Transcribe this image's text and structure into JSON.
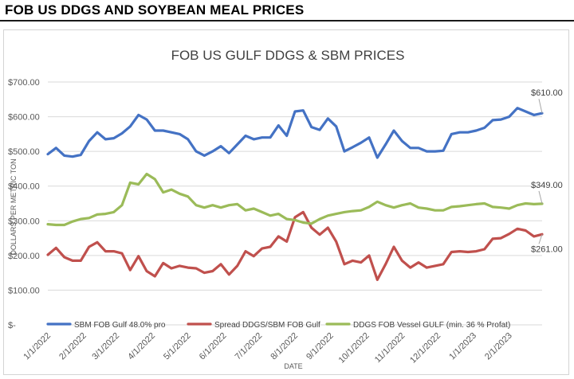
{
  "header": {
    "title": "FOB US DDGS AND SOYBEAN MEAL PRICES"
  },
  "chart_data": {
    "type": "line",
    "title": "FOB US GULF DDGS & SBM PRICES",
    "xlabel": "DATE",
    "ylabel": "DOLLARS PER METRIC TON",
    "ylim": [
      0,
      700
    ],
    "y_ticks": [
      "$-",
      "$100.00",
      "$200.00",
      "$300.00",
      "$400.00",
      "$500.00",
      "$600.00",
      "$700.00"
    ],
    "x_ticks": [
      "1/1/2022",
      "2/1/2022",
      "3/1/2022",
      "4/1/2022",
      "5/1/2022",
      "6/1/2022",
      "7/1/2022",
      "8/1/2022",
      "9/1/2022",
      "10/1/2022",
      "11/1/2022",
      "12/1/2022",
      "1/1/2023",
      "2/1/2023"
    ],
    "x_ticks_index": [
      0,
      4.33,
      8.33,
      12.67,
      17,
      21.33,
      25.67,
      30,
      34.33,
      38.67,
      43,
      47.33,
      51.67,
      56
    ],
    "grid": true,
    "legend_position": "bottom",
    "series": [
      {
        "name": "SBM FOB Gulf 48.0% pro",
        "color": "#4472C4",
        "end_label": "$610.00",
        "values": [
          492,
          510,
          488,
          485,
          490,
          530,
          555,
          535,
          538,
          552,
          572,
          605,
          592,
          560,
          560,
          555,
          550,
          535,
          500,
          488,
          500,
          515,
          495,
          520,
          545,
          535,
          540,
          540,
          575,
          545,
          615,
          618,
          570,
          562,
          595,
          572,
          500,
          512,
          525,
          540,
          482,
          520,
          560,
          530,
          510,
          510,
          500,
          500,
          502,
          550,
          555,
          555,
          560,
          568,
          590,
          592,
          600,
          625,
          615,
          605,
          610
        ]
      },
      {
        "name": "Spread DDGS/SBM FOB Gulf",
        "color": "#C0504D",
        "end_label": "$261.00",
        "values": [
          202,
          222,
          195,
          185,
          185,
          225,
          238,
          212,
          212,
          206,
          158,
          198,
          155,
          140,
          178,
          163,
          170,
          165,
          163,
          150,
          155,
          175,
          145,
          170,
          212,
          198,
          220,
          225,
          255,
          240,
          310,
          325,
          280,
          260,
          280,
          240,
          175,
          185,
          180,
          200,
          130,
          175,
          225,
          185,
          165,
          180,
          165,
          170,
          175,
          210,
          212,
          210,
          212,
          218,
          248,
          250,
          262,
          277,
          272,
          255,
          261
        ]
      },
      {
        "name": "DDGS FOB Vessel GULF  (min. 36 % Profat)",
        "color": "#9BBB59",
        "end_label": "$349.00",
        "values": [
          290,
          288,
          288,
          298,
          305,
          308,
          318,
          320,
          325,
          345,
          410,
          405,
          435,
          420,
          382,
          390,
          378,
          370,
          345,
          338,
          345,
          338,
          345,
          348,
          330,
          335,
          325,
          315,
          320,
          305,
          302,
          295,
          292,
          305,
          315,
          320,
          325,
          328,
          330,
          340,
          355,
          345,
          338,
          345,
          350,
          338,
          335,
          330,
          330,
          340,
          342,
          345,
          348,
          350,
          340,
          338,
          335,
          345,
          350,
          348,
          349
        ]
      }
    ]
  }
}
